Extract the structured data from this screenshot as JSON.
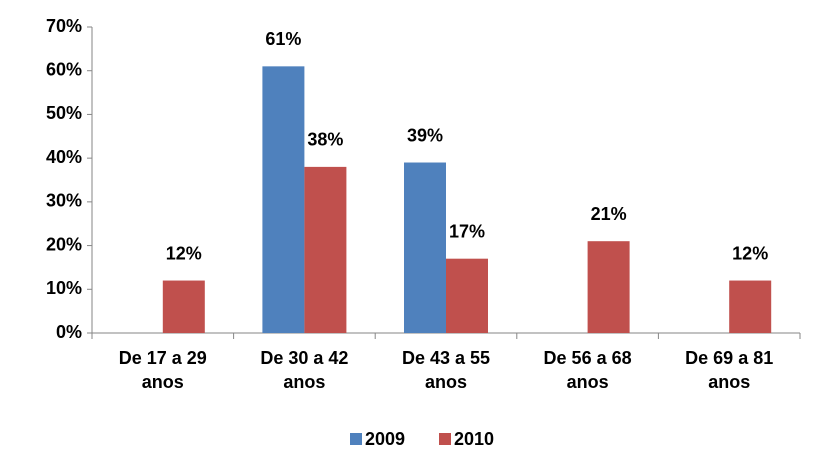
{
  "chart_data": {
    "type": "bar",
    "categories": [
      "De 17 a 29 anos",
      "De 30 a 42 anos",
      "De 43 a 55 anos",
      "De 56 a 68 anos",
      "De 69 a 81 anos"
    ],
    "series": [
      {
        "name": "2009",
        "color": "#4f81bd",
        "values": [
          null,
          61,
          39,
          null,
          null
        ],
        "value_labels": [
          null,
          "61%",
          "39%",
          null,
          null
        ]
      },
      {
        "name": "2010",
        "color": "#c0504d",
        "values": [
          12,
          38,
          17,
          21,
          12
        ],
        "value_labels": [
          "12%",
          "38%",
          "17%",
          "21%",
          "12%"
        ]
      }
    ],
    "ylim": [
      0,
      70
    ],
    "yticks": [
      {
        "value": 0,
        "label": "0%"
      },
      {
        "value": 10,
        "label": "10%"
      },
      {
        "value": 20,
        "label": "20%"
      },
      {
        "value": 30,
        "label": "30%"
      },
      {
        "value": 40,
        "label": "40%"
      },
      {
        "value": 50,
        "label": "50%"
      },
      {
        "value": 60,
        "label": "60%"
      },
      {
        "value": 70,
        "label": "70%"
      }
    ],
    "legend": "bottom"
  }
}
